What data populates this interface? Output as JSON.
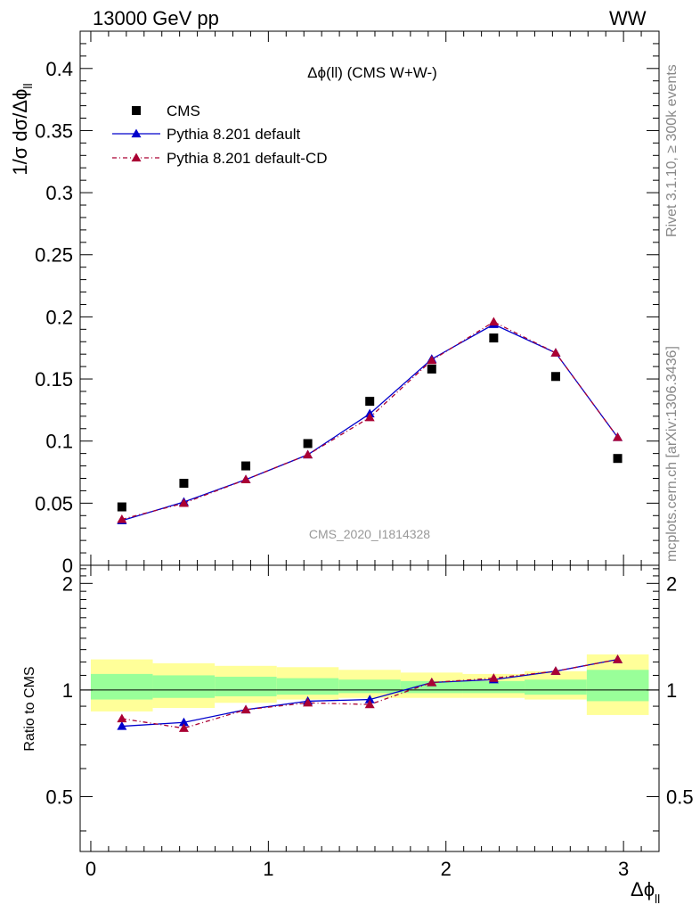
{
  "header": {
    "left": "13000 GeV pp",
    "right": "WW"
  },
  "side_labels": {
    "rivet": "Rivet 3.1.10, ≥ 300k events",
    "mcplots": "mcplots.cern.ch [arXiv:1306.3436]"
  },
  "chart_data": [
    {
      "type": "scatter",
      "panel": "main",
      "title": "Δϕ(ll) (CMS W+W-)",
      "ylabel": "1/σ dσ/Δϕ_ll",
      "watermark": "CMS_2020_I1814328",
      "ylim": [
        0,
        0.43
      ],
      "xlim": [
        -0.06,
        3.2
      ],
      "yticks": [
        0,
        0.05,
        0.1,
        0.15,
        0.2,
        0.25,
        0.3,
        0.35,
        0.4
      ],
      "ytick_labels": [
        "0",
        "0.05",
        "0.1",
        "0.15",
        "0.2",
        "0.25",
        "0.3",
        "0.35",
        "0.4"
      ],
      "legend_position": "top-left",
      "x": [
        0.175,
        0.524,
        0.873,
        1.222,
        1.571,
        1.92,
        2.269,
        2.618,
        2.967
      ],
      "series": [
        {
          "name": "CMS",
          "marker": "square",
          "color": "#000000",
          "values": [
            0.047,
            0.066,
            0.08,
            0.098,
            0.132,
            0.158,
            0.183,
            0.152,
            0.086
          ]
        },
        {
          "name": "Pythia 8.201 default",
          "marker": "triangle",
          "line": "solid",
          "color": "#0000cc",
          "values": [
            0.036,
            0.051,
            0.069,
            0.089,
            0.122,
            0.166,
            0.194,
            0.171,
            0.103
          ]
        },
        {
          "name": "Pythia 8.201 default-CD",
          "marker": "triangle",
          "line": "dashdot",
          "color": "#aa0033",
          "values": [
            0.037,
            0.05,
            0.069,
            0.089,
            0.119,
            0.165,
            0.196,
            0.171,
            0.103
          ]
        }
      ]
    },
    {
      "type": "line",
      "panel": "ratio",
      "ylabel": "Ratio to CMS",
      "xlabel": "Δϕ_ll",
      "ylim": [
        0.35,
        2.25
      ],
      "xlim": [
        -0.06,
        3.2
      ],
      "yticks": [
        0.5,
        1,
        2
      ],
      "ytick_labels": [
        "0.5",
        "1",
        "2"
      ],
      "xticks": [
        0,
        1,
        2,
        3
      ],
      "xtick_labels": [
        "0",
        "1",
        "2",
        "3"
      ],
      "reference": 1,
      "bin_edges": [
        0,
        0.349,
        0.698,
        1.047,
        1.396,
        1.745,
        2.094,
        2.443,
        2.793,
        3.142
      ],
      "band_outer": [
        [
          0.87,
          1.22
        ],
        [
          0.89,
          1.19
        ],
        [
          0.92,
          1.17
        ],
        [
          0.94,
          1.16
        ],
        [
          0.95,
          1.14
        ],
        [
          0.95,
          1.12
        ],
        [
          0.95,
          1.11
        ],
        [
          0.94,
          1.13
        ],
        [
          0.85,
          1.26
        ]
      ],
      "band_inner": [
        [
          0.94,
          1.11
        ],
        [
          0.95,
          1.1
        ],
        [
          0.96,
          1.09
        ],
        [
          0.97,
          1.08
        ],
        [
          0.98,
          1.07
        ],
        [
          0.98,
          1.06
        ],
        [
          0.98,
          1.06
        ],
        [
          0.97,
          1.07
        ],
        [
          0.93,
          1.14
        ]
      ],
      "band_colors": {
        "outer": "#ffff99",
        "inner": "#99ff99"
      },
      "x": [
        0.175,
        0.524,
        0.873,
        1.222,
        1.571,
        1.92,
        2.269,
        2.618,
        2.967
      ],
      "series": [
        {
          "name": "Pythia 8.201 default",
          "color": "#0000cc",
          "line": "solid",
          "values": [
            0.79,
            0.81,
            0.88,
            0.93,
            0.94,
            1.05,
            1.07,
            1.13,
            1.22
          ]
        },
        {
          "name": "Pythia 8.201 default-CD",
          "color": "#aa0033",
          "line": "dashdot",
          "values": [
            0.83,
            0.78,
            0.88,
            0.92,
            0.91,
            1.05,
            1.08,
            1.13,
            1.22
          ]
        }
      ]
    }
  ]
}
